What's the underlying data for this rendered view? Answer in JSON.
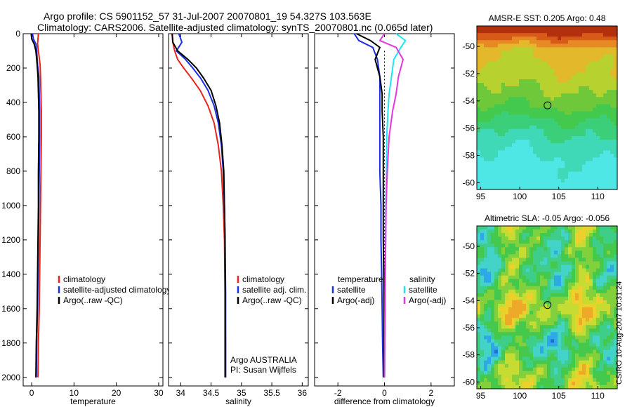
{
  "figure": {
    "title_line1": "Argo profile: CS 5901152_57 31-Jul-2007 20070801_19 54.327S 103.563E",
    "title_line2": "Climatology: CARS2006. Satellite-adjusted climatology: synTS_20070801.nc (0.065d later)",
    "credit": "CSIRO 10-Aug-2007 10:31:24"
  },
  "colors": {
    "climatology": "#e8251c",
    "satellite": "#1a2ee6",
    "argo": "#000000",
    "salinity_satellite": "#22e4f0",
    "salinity_argo": "#e636e0"
  },
  "chart_data": [
    {
      "id": "temperature",
      "type": "line",
      "xlabel": "temperature",
      "ylabel": "",
      "xlim": [
        -2,
        31
      ],
      "ylim": [
        2050,
        0
      ],
      "xticks": [
        "0",
        "10",
        "20",
        "30"
      ],
      "xtick_values": [
        0,
        10,
        20,
        30
      ],
      "yticks": [
        "0",
        "200",
        "400",
        "600",
        "800",
        "1000",
        "1200",
        "1400",
        "1600",
        "1800",
        "2000"
      ],
      "ytick_values": [
        0,
        200,
        400,
        600,
        800,
        1000,
        1200,
        1400,
        1600,
        1800,
        2000
      ],
      "legend": [
        "climatology",
        "satellite-adjusted climatology",
        "Argo(..raw -QC)"
      ],
      "legend_position": "bottom-right",
      "series": [
        {
          "name": "climatology",
          "color_key": "climatology",
          "x": [
            1.6,
            1.5,
            1.4,
            1.6,
            2.0,
            2.1,
            2.2,
            2.3,
            2.3,
            2.2,
            2.1,
            2.0,
            1.9,
            1.8,
            1.6,
            1.5
          ],
          "y": [
            0,
            30,
            60,
            100,
            180,
            250,
            350,
            450,
            600,
            800,
            1000,
            1200,
            1400,
            1600,
            1800,
            2000
          ]
        },
        {
          "name": "satellite-adjusted climatology",
          "color_key": "satellite",
          "x": [
            0.2,
            0.4,
            1.0,
            1.2,
            1.4,
            1.7,
            1.8,
            1.9,
            1.9,
            1.8,
            1.7,
            1.6,
            1.5,
            1.4,
            1.2,
            1.1
          ],
          "y": [
            0,
            30,
            60,
            100,
            180,
            250,
            350,
            450,
            600,
            800,
            1000,
            1200,
            1400,
            1600,
            1800,
            2000
          ]
        },
        {
          "name": "Argo(..raw -QC)",
          "color_key": "argo",
          "x": [
            -0.1,
            0.0,
            0.6,
            1.0,
            1.3,
            1.5,
            1.6,
            1.7,
            1.7,
            1.6,
            1.6,
            1.5,
            1.4,
            1.3,
            1.1,
            1.0
          ],
          "y": [
            0,
            30,
            60,
            100,
            180,
            250,
            350,
            450,
            600,
            800,
            1000,
            1200,
            1400,
            1600,
            1800,
            2000
          ]
        }
      ],
      "annotation": []
    },
    {
      "id": "salinity",
      "type": "line",
      "xlabel": "salinity",
      "ylabel": "",
      "xlim": [
        33.8,
        36.1
      ],
      "ylim": [
        2050,
        0
      ],
      "xticks": [
        "34",
        "34.5",
        "35",
        "35.5",
        "36"
      ],
      "xtick_values": [
        34,
        34.5,
        35,
        35.5,
        36
      ],
      "yticks": [],
      "ytick_values": [],
      "legend": [
        "climatology",
        "satellite adj. clim.",
        "Argo(..raw -QC)"
      ],
      "legend_position": "bottom-right",
      "series": [
        {
          "name": "climatology",
          "color_key": "climatology",
          "x": [
            33.86,
            33.87,
            33.9,
            33.95,
            34.05,
            34.18,
            34.32,
            34.45,
            34.55,
            34.62,
            34.67,
            34.7,
            34.72,
            34.73,
            34.74,
            34.74
          ],
          "y": [
            0,
            50,
            100,
            150,
            200,
            260,
            330,
            420,
            520,
            650,
            800,
            1000,
            1200,
            1500,
            1800,
            2000
          ]
        },
        {
          "name": "satellite adj. clim.",
          "color_key": "satellite",
          "x": [
            33.97,
            34.02,
            33.93,
            34.08,
            34.2,
            34.33,
            34.45,
            34.55,
            34.62,
            34.67,
            34.7,
            34.72,
            34.73,
            34.74,
            34.74,
            34.74
          ],
          "y": [
            0,
            50,
            100,
            150,
            200,
            260,
            330,
            420,
            520,
            650,
            800,
            1000,
            1200,
            1500,
            1800,
            2000
          ]
        },
        {
          "name": "Argo(..raw -QC)",
          "color_key": "argo",
          "x": [
            33.86,
            33.87,
            33.95,
            34.12,
            34.26,
            34.38,
            34.5,
            34.58,
            34.64,
            34.68,
            34.71,
            34.72,
            34.73,
            34.73,
            34.73,
            34.73
          ],
          "y": [
            0,
            50,
            100,
            150,
            200,
            260,
            330,
            420,
            520,
            650,
            800,
            1000,
            1200,
            1500,
            1800,
            2000
          ]
        }
      ],
      "annotation": [
        "Argo AUSTRALIA",
        "PI: Susan Wijffels"
      ]
    },
    {
      "id": "difference",
      "type": "line",
      "xlabel": "difference from climatology",
      "ylabel": "",
      "xlim": [
        -3,
        3
      ],
      "ylim": [
        2050,
        0
      ],
      "xticks": [
        "-2",
        "0",
        "2"
      ],
      "xtick_values": [
        -2,
        0,
        2
      ],
      "yticks": [],
      "ytick_values": [],
      "legend_left_title": "temperature",
      "legend_left": [
        "satellite",
        "Argo(-adj)"
      ],
      "legend_right_title": "salinity",
      "legend_right": [
        "satellite",
        "Argo(-adj)"
      ],
      "legend_position": "bottom",
      "series": [
        {
          "name": "temperature satellite",
          "color_key": "satellite",
          "x": [
            -1.3,
            -1.1,
            -0.5,
            -0.3,
            -0.2,
            -0.2,
            -0.2,
            -0.2,
            -0.2,
            -0.15,
            -0.15,
            -0.12,
            -0.1,
            -0.08,
            -0.05
          ],
          "y": [
            0,
            40,
            80,
            150,
            250,
            350,
            450,
            600,
            800,
            1000,
            1200,
            1400,
            1600,
            1800,
            2000
          ]
        },
        {
          "name": "temperature Argo(-adj)",
          "color_key": "argo",
          "x": [
            -1.2,
            -0.6,
            -0.2,
            -0.4,
            -0.2,
            -0.1,
            -0.1,
            -0.05,
            -0.05,
            -0.05,
            -0.05,
            -0.03,
            -0.02,
            -0.02,
            -0.02
          ],
          "y": [
            0,
            40,
            80,
            150,
            250,
            350,
            450,
            600,
            800,
            1000,
            1200,
            1400,
            1600,
            1800,
            2000
          ]
        },
        {
          "name": "salinity satellite",
          "color_key": "salinity_satellite",
          "x": [
            0.5,
            0.9,
            0.7,
            0.4,
            0.3,
            0.2,
            0.15,
            0.1,
            0.08,
            0.06,
            0.05,
            0.04,
            0.03,
            0.02,
            0.01
          ],
          "y": [
            0,
            40,
            80,
            150,
            250,
            350,
            450,
            600,
            800,
            1000,
            1200,
            1400,
            1600,
            1800,
            2000
          ]
        },
        {
          "name": "salinity Argo(-adj)",
          "color_key": "salinity_argo",
          "x": [
            0.0,
            -0.2,
            0.5,
            0.8,
            0.6,
            0.5,
            0.35,
            0.2,
            0.12,
            0.07,
            0.05,
            0.03,
            0.02,
            0.01,
            0.0
          ],
          "y": [
            0,
            40,
            80,
            150,
            250,
            350,
            450,
            600,
            800,
            1000,
            1200,
            1400,
            1600,
            1800,
            2000
          ]
        }
      ],
      "annotation": []
    },
    {
      "id": "sst_map",
      "type": "heatmap",
      "title": "AMSR-E SST: 0.205 Argo: 0.48",
      "xlim": [
        94.5,
        112.5
      ],
      "ylim": [
        -60.5,
        -48.5
      ],
      "xticks": [
        "95",
        "100",
        "105",
        "110"
      ],
      "xtick_values": [
        95,
        100,
        105,
        110
      ],
      "yticks": [
        "-50",
        "-52",
        "-54",
        "-56",
        "-58",
        "-60"
      ],
      "ytick_values": [
        -50,
        -52,
        -54,
        -56,
        -58,
        -60
      ],
      "marker": {
        "lon": 103.563,
        "lat": -54.327
      },
      "colors": [
        "#4fe6e6",
        "#3fd9b8",
        "#3ccf7a",
        "#43c94e",
        "#6ec83a",
        "#b7d22f",
        "#e3b82a",
        "#e88a24",
        "#d85a18",
        "#b3300e"
      ]
    },
    {
      "id": "sla_map",
      "type": "heatmap",
      "title": "Altimetric SLA: -0.05 Argo: -0.056",
      "xlim": [
        94.5,
        112.5
      ],
      "ylim": [
        -60.5,
        -48.5
      ],
      "xticks": [
        "95",
        "100",
        "105",
        "110"
      ],
      "xtick_values": [
        95,
        100,
        105,
        110
      ],
      "yticks": [
        "-50",
        "-52",
        "-54",
        "-56",
        "-58",
        "-60"
      ],
      "ytick_values": [
        -50,
        -52,
        -54,
        -56,
        -58,
        -60
      ],
      "marker": {
        "lon": 103.563,
        "lat": -54.327
      },
      "colors": [
        "#1f6fd6",
        "#2ea8e6",
        "#43d3c8",
        "#3fce8a",
        "#45c94c",
        "#82d03c",
        "#c7dc32",
        "#ecd02b",
        "#eea928"
      ]
    }
  ]
}
